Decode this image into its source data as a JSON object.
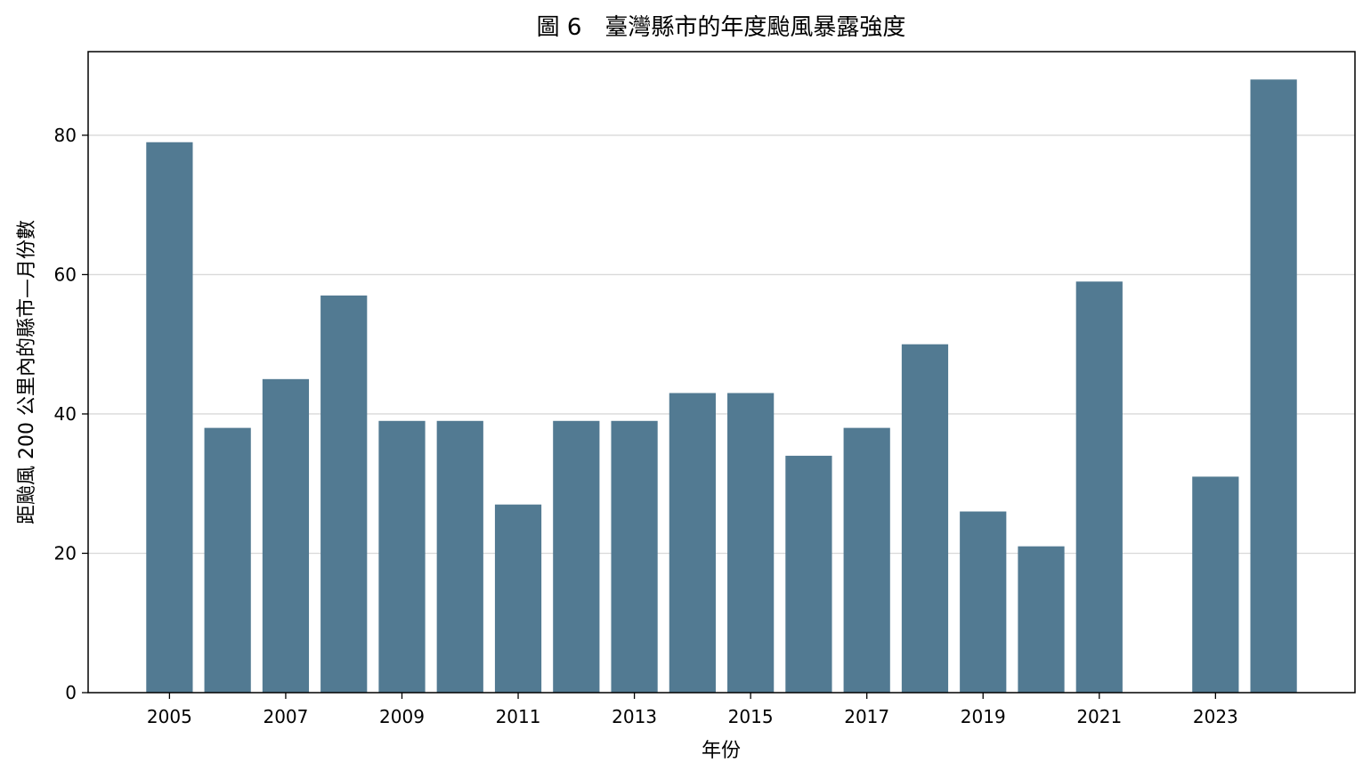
{
  "chart_data": {
    "type": "bar",
    "title": "圖 6　臺灣縣市的年度颱風暴露強度",
    "xlabel": "年份",
    "ylabel": "距颱風 200 公里內的縣市—月份數",
    "x": [
      2005,
      2006,
      2007,
      2008,
      2009,
      2010,
      2011,
      2012,
      2013,
      2014,
      2015,
      2016,
      2017,
      2018,
      2019,
      2020,
      2021,
      2023,
      2024
    ],
    "values": [
      79,
      38,
      45,
      57,
      39,
      39,
      27,
      39,
      39,
      43,
      43,
      34,
      38,
      50,
      26,
      21,
      59,
      31,
      88
    ],
    "xlim": [
      2003.6,
      2025.4
    ],
    "ylim": [
      0,
      92
    ],
    "xticks": [
      2005,
      2007,
      2009,
      2011,
      2013,
      2015,
      2017,
      2019,
      2021,
      2023
    ],
    "yticks": [
      0,
      20,
      40,
      60,
      80
    ],
    "grid": "horizontal",
    "bar_color": "#527a92"
  }
}
